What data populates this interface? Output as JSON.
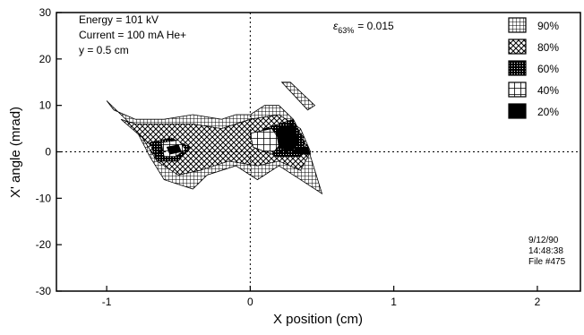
{
  "chart_data": {
    "type": "heatmap",
    "xlabel": "X position (cm)",
    "ylabel": "X' angle (mrad)",
    "xlim": [
      -1.35,
      2.3
    ],
    "ylim": [
      -30,
      30
    ],
    "x_ticks": [
      -1,
      0,
      1,
      2
    ],
    "x_tick_labels": [
      "-1",
      "0",
      "1",
      "2"
    ],
    "y_ticks": [
      -30,
      -20,
      -10,
      0,
      10,
      20,
      30
    ],
    "y_tick_labels": [
      "-30",
      "-20",
      "-10",
      "0",
      "10",
      "20",
      "30"
    ],
    "dashed_reference_lines": {
      "x": 0,
      "y": 0
    },
    "annotations": {
      "params": [
        "Energy = 101 kV",
        "Current = 100 mA He+",
        "y = 0.5 cm"
      ],
      "emittance_symbol": "ε",
      "emittance_subscript": "63%",
      "emittance_value": "= 0.015",
      "date": "9/12/90",
      "time": "14:48:38",
      "file": "File #475"
    },
    "legend": {
      "placement": "top-right",
      "entries": [
        {
          "label": "90%",
          "pattern": "grid-dense"
        },
        {
          "label": "80%",
          "pattern": "cross-hatch"
        },
        {
          "label": "60%",
          "pattern": "dark-dots"
        },
        {
          "label": "40%",
          "pattern": "grid-open"
        },
        {
          "label": "20%",
          "pattern": "solid"
        }
      ]
    },
    "regions": [
      {
        "level": "90%",
        "polygon": [
          [
            -1.0,
            11
          ],
          [
            -0.8,
            5
          ],
          [
            -0.7,
            -1
          ],
          [
            -0.6,
            -6
          ],
          [
            -0.4,
            -8
          ],
          [
            -0.3,
            -5
          ],
          [
            -0.1,
            -3
          ],
          [
            0.05,
            -6
          ],
          [
            0.2,
            -3
          ],
          [
            0.35,
            -6
          ],
          [
            0.5,
            -9
          ],
          [
            0.45,
            -4
          ],
          [
            0.4,
            1
          ],
          [
            0.3,
            7
          ],
          [
            0.2,
            10
          ],
          [
            0.1,
            10
          ],
          [
            0.0,
            8
          ],
          [
            -0.1,
            8
          ],
          [
            -0.2,
            7
          ],
          [
            -0.4,
            8
          ],
          [
            -0.6,
            7
          ],
          [
            -0.8,
            7
          ],
          [
            -0.95,
            9
          ]
        ]
      },
      {
        "level": "90%",
        "polygon": [
          [
            0.22,
            15
          ],
          [
            0.28,
            15
          ],
          [
            0.45,
            10
          ],
          [
            0.4,
            9
          ]
        ]
      },
      {
        "level": "80%",
        "polygon": [
          [
            -0.9,
            7
          ],
          [
            -0.75,
            3
          ],
          [
            -0.65,
            -2
          ],
          [
            -0.5,
            -5
          ],
          [
            -0.35,
            -4
          ],
          [
            -0.15,
            -2
          ],
          [
            0.05,
            -3
          ],
          [
            0.2,
            -2
          ],
          [
            0.35,
            -4
          ],
          [
            0.42,
            0
          ],
          [
            0.35,
            5
          ],
          [
            0.2,
            8
          ],
          [
            0.0,
            7
          ],
          [
            -0.2,
            5
          ],
          [
            -0.4,
            6
          ],
          [
            -0.6,
            6
          ],
          [
            -0.8,
            6
          ]
        ]
      },
      {
        "level": "60%",
        "polygon": [
          [
            -0.7,
            2
          ],
          [
            -0.55,
            3
          ],
          [
            -0.42,
            1
          ],
          [
            -0.5,
            -2
          ],
          [
            -0.65,
            -2
          ]
        ]
      },
      {
        "level": "60%",
        "polygon": [
          [
            0.1,
            5
          ],
          [
            0.3,
            7
          ],
          [
            0.38,
            2
          ],
          [
            0.35,
            -1
          ],
          [
            0.18,
            -1
          ],
          [
            0.08,
            2
          ]
        ]
      },
      {
        "level": "40%",
        "polygon": [
          [
            -0.62,
            2
          ],
          [
            -0.5,
            2.5
          ],
          [
            -0.45,
            0.5
          ],
          [
            -0.52,
            -1
          ],
          [
            -0.6,
            -1
          ]
        ]
      },
      {
        "level": "40%",
        "polygon": [
          [
            0.0,
            4
          ],
          [
            0.15,
            5
          ],
          [
            0.22,
            2
          ],
          [
            0.15,
            -0.5
          ],
          [
            0.02,
            1
          ]
        ]
      },
      {
        "level": "20%",
        "polygon": [
          [
            0.18,
            5
          ],
          [
            0.3,
            6
          ],
          [
            0.34,
            2
          ],
          [
            0.28,
            0
          ],
          [
            0.2,
            1
          ]
        ]
      },
      {
        "level": "20%",
        "polygon": [
          [
            -0.58,
            1
          ],
          [
            -0.5,
            1.5
          ],
          [
            -0.48,
            0
          ],
          [
            -0.56,
            -0.5
          ]
        ]
      },
      {
        "level": "20%",
        "polygon": [
          [
            0.3,
            1
          ],
          [
            0.4,
            1
          ],
          [
            0.42,
            -0.5
          ],
          [
            0.33,
            -0.5
          ]
        ]
      }
    ]
  }
}
